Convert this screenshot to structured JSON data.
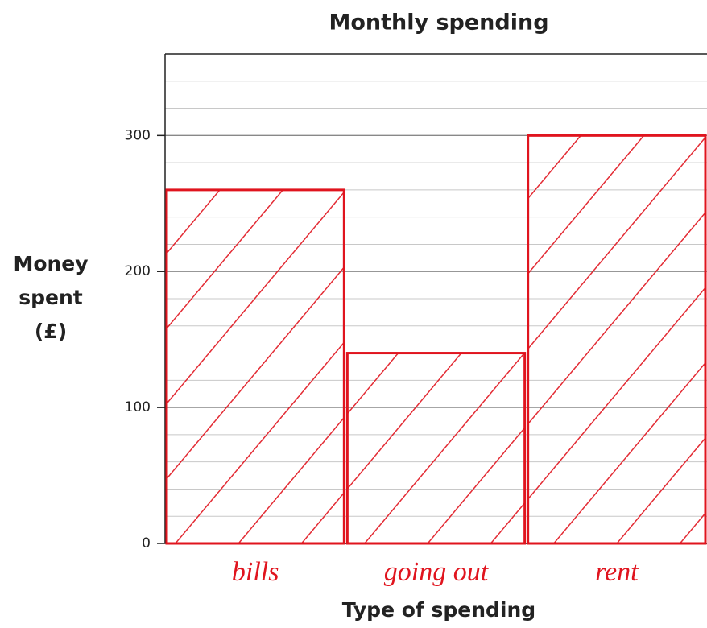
{
  "chart_data": {
    "type": "bar",
    "title": "Monthly spending",
    "xlabel": "Type of spending",
    "ylabel": [
      "Money",
      "spent",
      "(£)"
    ],
    "categories": [
      "bills",
      "going out",
      "rent"
    ],
    "values": [
      260,
      140,
      300
    ],
    "color": "#e0141e",
    "ylim": [
      0,
      360
    ],
    "yticks": [
      0,
      100,
      200,
      300
    ],
    "minor_yticks": [
      20,
      40,
      60,
      80,
      120,
      140,
      160,
      180,
      220,
      240,
      260,
      280,
      320,
      340,
      360
    ],
    "grid": true
  }
}
